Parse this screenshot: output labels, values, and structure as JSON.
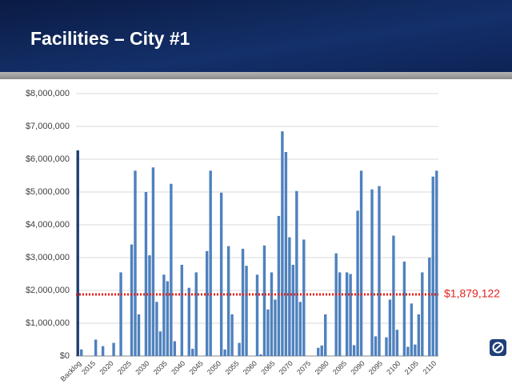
{
  "chart_data": {
    "type": "bar",
    "title": "Facilities – City #1",
    "categories": [
      "Backlog",
      null,
      null,
      null,
      "2015",
      null,
      null,
      null,
      null,
      "2020",
      null,
      null,
      null,
      null,
      "2025",
      null,
      null,
      null,
      null,
      "2030",
      null,
      null,
      null,
      null,
      "2035",
      null,
      null,
      null,
      null,
      "2040",
      null,
      null,
      null,
      null,
      "2045",
      null,
      null,
      null,
      null,
      "2050",
      null,
      null,
      null,
      null,
      "2055",
      null,
      null,
      null,
      null,
      "2060",
      null,
      null,
      null,
      null,
      "2065",
      null,
      null,
      null,
      null,
      "2070",
      null,
      null,
      null,
      null,
      "2075",
      null,
      null,
      null,
      null,
      "2080",
      null,
      null,
      null,
      null,
      "2085",
      null,
      null,
      null,
      null,
      "2090",
      null,
      null,
      null,
      null,
      "2095",
      null,
      null,
      null,
      null,
      "2100",
      null,
      null,
      null,
      null,
      "2105",
      null,
      null,
      null,
      null,
      "2110",
      null
    ],
    "values": [
      6270000,
      200000,
      0,
      0,
      0,
      500000,
      0,
      300000,
      0,
      0,
      400000,
      0,
      2550000,
      0,
      0,
      3400000,
      5650000,
      1270000,
      0,
      5000000,
      3070000,
      5750000,
      1650000,
      750000,
      2480000,
      2280000,
      5250000,
      450000,
      0,
      2780000,
      0,
      2080000,
      220000,
      2550000,
      0,
      0,
      3200000,
      5650000,
      0,
      0,
      4980000,
      200000,
      3350000,
      1270000,
      0,
      400000,
      3270000,
      2750000,
      0,
      0,
      2480000,
      50000,
      3370000,
      1420000,
      2550000,
      1720000,
      4270000,
      6850000,
      6220000,
      3620000,
      2780000,
      5030000,
      1650000,
      3550000,
      0,
      0,
      0,
      250000,
      320000,
      1270000,
      0,
      0,
      3130000,
      2550000,
      0,
      2550000,
      2500000,
      330000,
      4430000,
      5650000,
      0,
      0,
      5080000,
      600000,
      5180000,
      0,
      570000,
      1720000,
      3670000,
      800000,
      0,
      2880000,
      280000,
      1600000,
      350000,
      1270000,
      2550000,
      0,
      3000000,
      5470000,
      5650000
    ],
    "color": "#4f81bd",
    "first_bar_color": "#1f3f77",
    "ylim": [
      0,
      8000000
    ],
    "yticks": [
      {
        "value": 0,
        "label": "$0"
      },
      {
        "value": 1000000,
        "label": "$1,000,000"
      },
      {
        "value": 2000000,
        "label": "$2,000,000"
      },
      {
        "value": 3000000,
        "label": "$3,000,000"
      },
      {
        "value": 4000000,
        "label": "$4,000,000"
      },
      {
        "value": 5000000,
        "label": "$5,000,000"
      },
      {
        "value": 6000000,
        "label": "$6,000,000"
      },
      {
        "value": 7000000,
        "label": "$7,000,000"
      },
      {
        "value": 8000000,
        "label": "$8,000,000"
      }
    ],
    "grid": true,
    "reference_line": {
      "value": 1879122,
      "label": "$1,879,122",
      "color": "#e3211c"
    }
  }
}
